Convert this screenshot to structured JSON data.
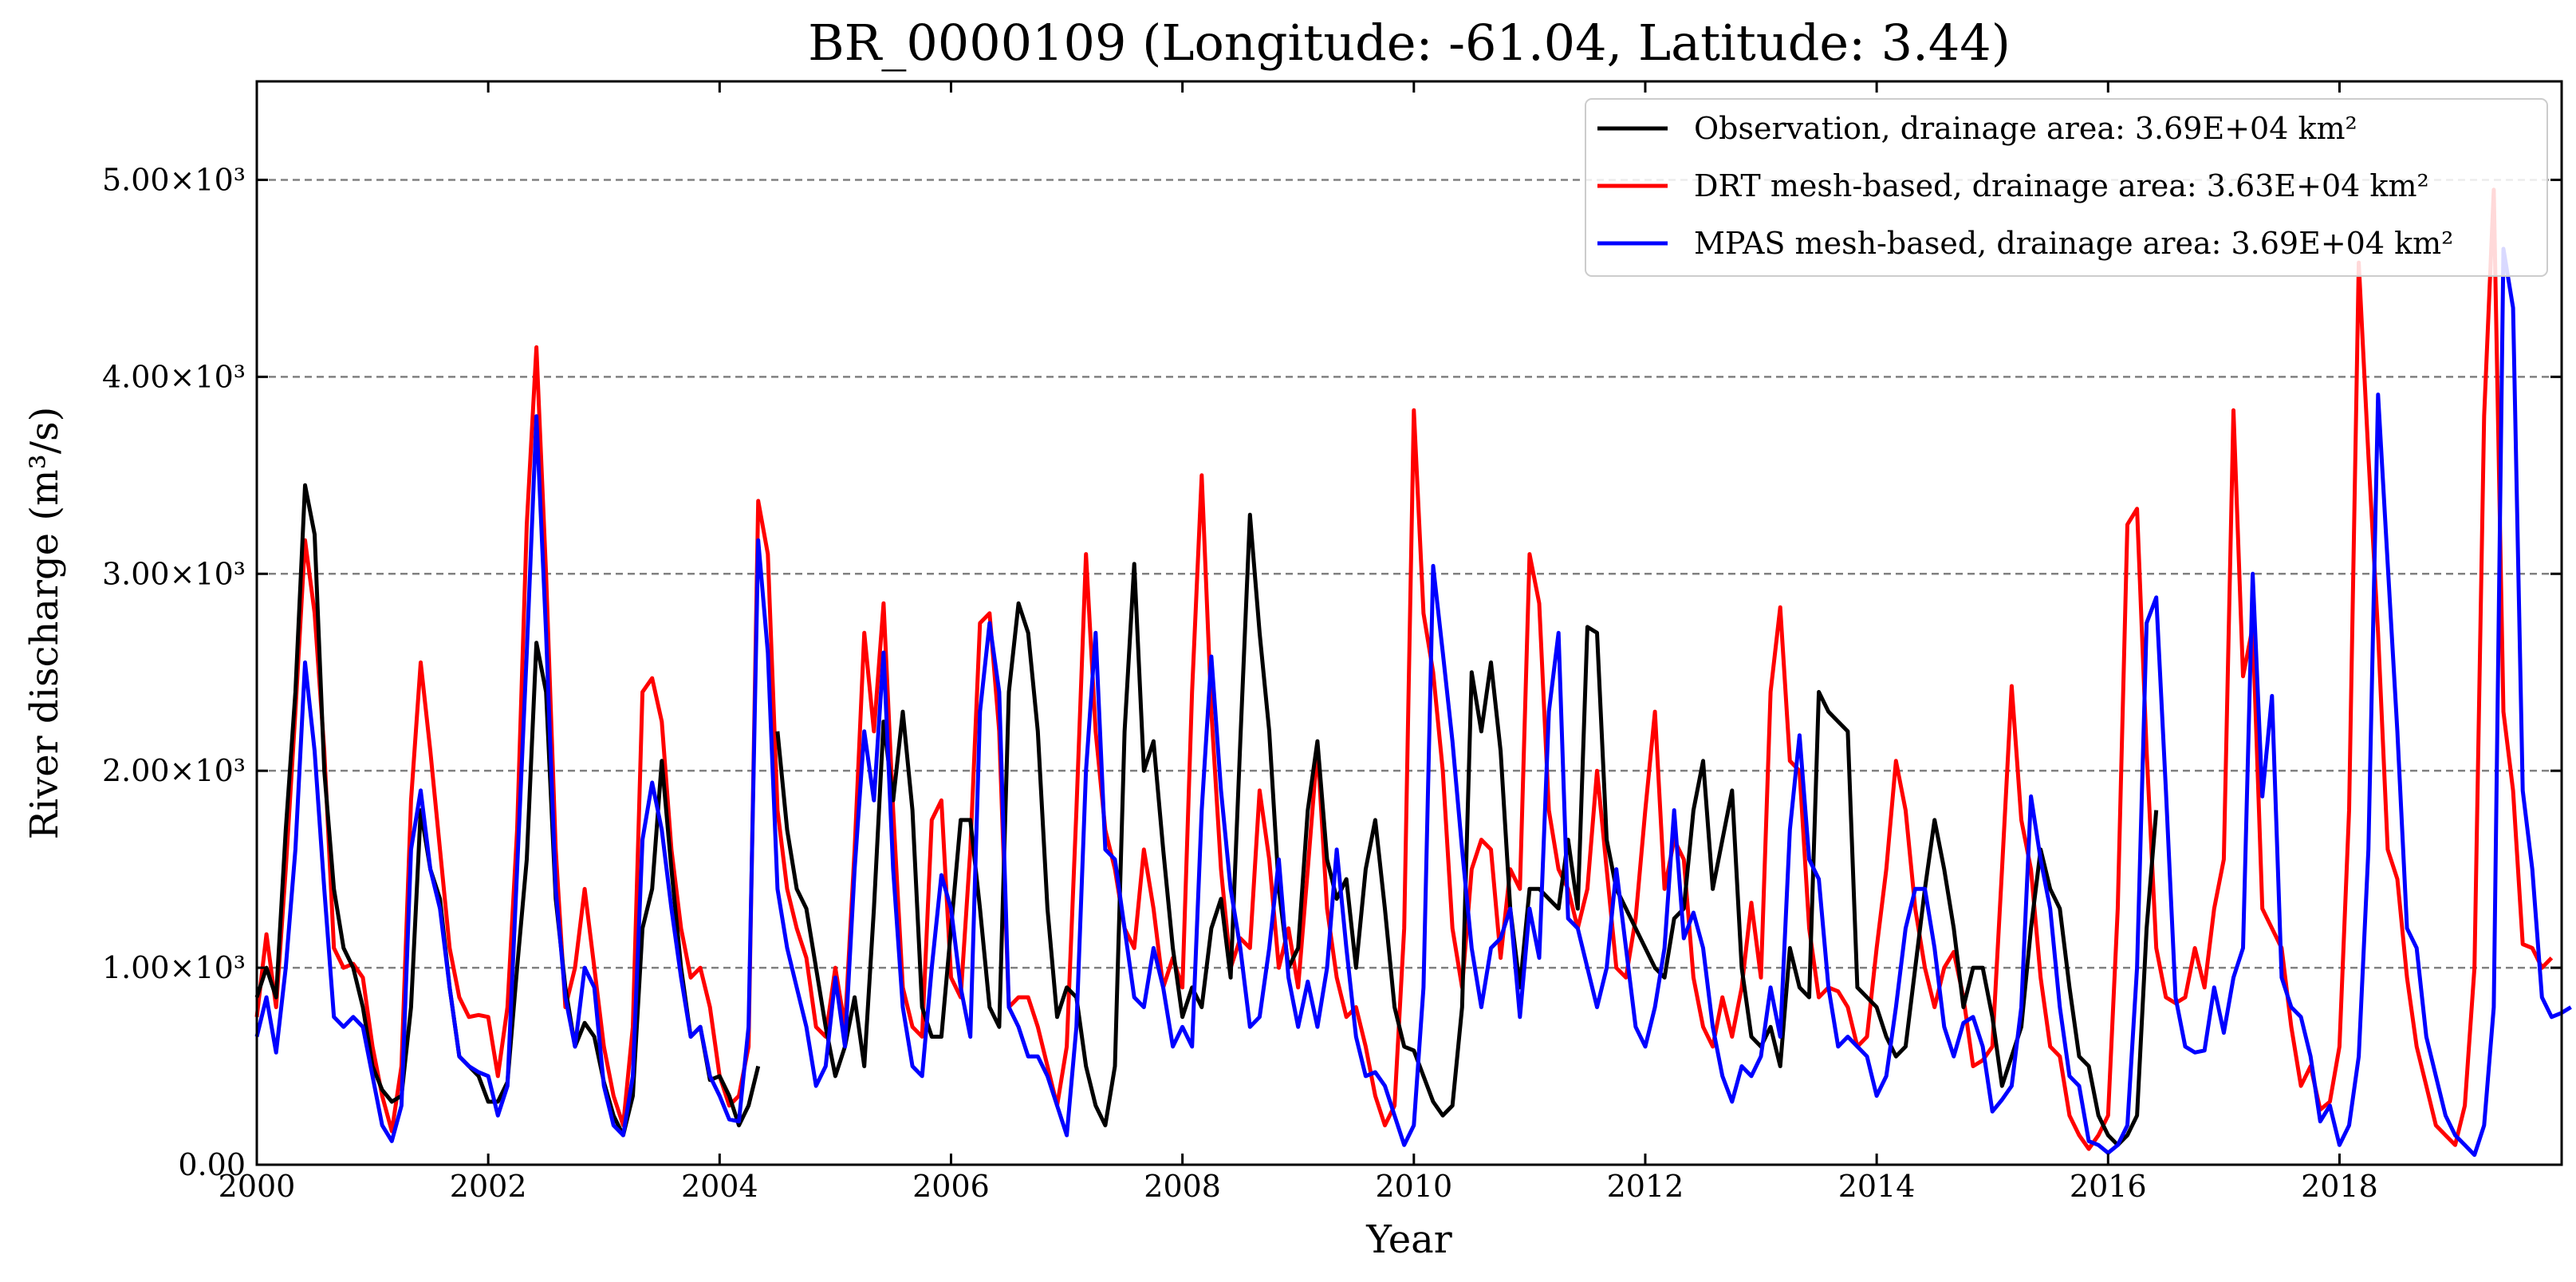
{
  "chart_data": {
    "type": "line",
    "title": "BR_0000109 (Longitude: -61.04, Latitude: 3.44)",
    "xlabel": "Year",
    "ylabel": "River discharge (m³/s)",
    "xlim": [
      2000.0,
      2019.92
    ],
    "ylim": [
      0,
      5500
    ],
    "x_ticks": [
      2000,
      2002,
      2004,
      2006,
      2008,
      2010,
      2012,
      2014,
      2016,
      2018
    ],
    "x_tick_labels": [
      "2000",
      "2002",
      "2004",
      "2006",
      "2008",
      "2010",
      "2012",
      "2014",
      "2016",
      "2018"
    ],
    "y_ticks": [
      0,
      1000,
      2000,
      3000,
      4000,
      5000
    ],
    "y_tick_labels": [
      "0.00",
      "1.00×10³",
      "2.00×10³",
      "3.00×10³",
      "4.00×10³",
      "5.00×10³"
    ],
    "grid": "horizontal dashed",
    "legend_position": "top-right",
    "x_start_year": 2000,
    "x_step": "monthly",
    "series": [
      {
        "name": "Observation, drainage area: 3.69E+04 km²",
        "color": "#000000",
        "values": [
          850,
          1000,
          850,
          1700,
          2400,
          3450,
          3200,
          2000,
          1400,
          1100,
          1000,
          800,
          500,
          380,
          320,
          350,
          800,
          1800,
          1500,
          1350,
          900,
          550,
          500,
          450,
          320,
          320,
          420,
          1000,
          1550,
          2650,
          2400,
          1350,
          900,
          600,
          720,
          650,
          420,
          250,
          150,
          350,
          1200,
          1400,
          2050,
          1500,
          1000,
          650,
          700,
          430,
          450,
          350,
          200,
          300,
          500,
          null,
          2200,
          1700,
          1400,
          1300,
          1000,
          700,
          450,
          600,
          850,
          500,
          1300,
          2250,
          1850,
          2300,
          1800,
          800,
          650,
          650,
          1200,
          1750,
          1750,
          1300,
          800,
          700,
          2400,
          2850,
          2700,
          2200,
          1300,
          750,
          900,
          850,
          500,
          300,
          200,
          500,
          2200,
          3050,
          2000,
          2150,
          1600,
          1100,
          750,
          900,
          800,
          1200,
          1350,
          950,
          2150,
          3300,
          2700,
          2200,
          1400,
          1000,
          1100,
          1800,
          2150,
          1550,
          1350,
          1450,
          1000,
          1500,
          1750,
          1300,
          800,
          600,
          580,
          450,
          320,
          250,
          300,
          800,
          2500,
          2200,
          2550,
          2100,
          1300,
          900,
          1400,
          1400,
          1350,
          1300,
          1650,
          1300,
          2730,
          2700,
          1650,
          1400,
          1300,
          1200,
          1100,
          1000,
          950,
          1250,
          1300,
          1800,
          2050,
          1400,
          1650,
          1900,
          1000,
          650,
          600,
          700,
          500,
          1100,
          900,
          850,
          2400,
          2300,
          2250,
          2200,
          900,
          850,
          800,
          650,
          550,
          600,
          1000,
          1400,
          1750,
          1500,
          1200,
          800,
          1000,
          1000,
          750,
          400,
          550,
          700,
          1200,
          1600,
          1400,
          1300,
          900,
          550,
          500,
          250,
          150,
          100,
          150,
          250,
          1200,
          1800
        ]
      },
      {
        "name": "DRT mesh-based, drainage area: 3.63E+04 km²",
        "color": "#ff0000",
        "values": [
          750,
          1170,
          800,
          1500,
          2300,
          3170,
          2800,
          2100,
          1100,
          1000,
          1020,
          950,
          600,
          350,
          170,
          500,
          1850,
          2550,
          2100,
          1600,
          1100,
          850,
          750,
          760,
          750,
          450,
          800,
          1700,
          3250,
          4150,
          3000,
          1600,
          800,
          1000,
          1400,
          1000,
          600,
          350,
          200,
          700,
          2400,
          2470,
          2250,
          1600,
          1200,
          950,
          1000,
          800,
          450,
          300,
          350,
          600,
          3370,
          3100,
          1800,
          1400,
          1200,
          1050,
          700,
          650,
          1000,
          700,
          1600,
          2700,
          2200,
          2850,
          1800,
          900,
          700,
          650,
          1750,
          1850,
          950,
          850,
          1600,
          2750,
          2800,
          2200,
          800,
          850,
          850,
          700,
          500,
          300,
          600,
          1800,
          3100,
          2200,
          1700,
          1500,
          1200,
          1100,
          1600,
          1300,
          900,
          1050,
          900,
          2400,
          3500,
          2300,
          1500,
          1000,
          1150,
          1100,
          1900,
          1550,
          1000,
          1200,
          900,
          1500,
          2120,
          1300,
          950,
          750,
          800,
          600,
          350,
          200,
          300,
          1200,
          3830,
          2800,
          2500,
          2000,
          1200,
          900,
          1500,
          1650,
          1600,
          1050,
          1500,
          1400,
          3100,
          2850,
          1800,
          1500,
          1400,
          1200,
          1400,
          2000,
          1500,
          1000,
          950,
          1250,
          1800,
          2300,
          1400,
          1650,
          1550,
          950,
          700,
          600,
          850,
          650,
          900,
          1330,
          950,
          2400,
          2830,
          2050,
          2000,
          1200,
          850,
          900,
          880,
          800,
          600,
          650,
          1100,
          1500,
          2050,
          1800,
          1300,
          1000,
          800,
          1000,
          1080,
          850,
          500,
          530,
          600,
          1500,
          2430,
          1750,
          1500,
          950,
          600,
          550,
          250,
          150,
          80,
          150,
          250,
          1300,
          3250,
          3330,
          2100,
          1100,
          850,
          820,
          850,
          1100,
          900,
          1300,
          1550,
          3830,
          2480,
          2730,
          1300,
          1200,
          1100,
          700,
          400,
          500,
          280,
          320,
          600,
          1800,
          4580,
          3600,
          2700,
          1600,
          1450,
          950,
          600,
          400,
          200,
          150,
          100,
          300,
          1000,
          3800,
          4950,
          2300,
          1900,
          1120,
          1100,
          1000,
          1050
        ]
      },
      {
        "name": "MPAS mesh-based, drainage area: 3.69E+04 km²",
        "color": "#0000ff",
        "values": [
          650,
          850,
          570,
          1000,
          1600,
          2550,
          2100,
          1400,
          750,
          700,
          750,
          700,
          450,
          200,
          120,
          300,
          1600,
          1900,
          1500,
          1300,
          900,
          550,
          500,
          470,
          450,
          250,
          400,
          1500,
          2600,
          3800,
          2700,
          1400,
          850,
          600,
          1000,
          900,
          400,
          200,
          150,
          450,
          1650,
          1940,
          1700,
          1300,
          950,
          650,
          700,
          450,
          350,
          230,
          220,
          700,
          3170,
          2600,
          1400,
          1100,
          900,
          700,
          400,
          500,
          950,
          600,
          1500,
          2200,
          1850,
          2600,
          1500,
          800,
          500,
          450,
          1000,
          1470,
          1300,
          900,
          650,
          2300,
          2750,
          2400,
          800,
          700,
          550,
          550,
          450,
          300,
          150,
          700,
          2000,
          2700,
          1600,
          1550,
          1200,
          850,
          800,
          1100,
          900,
          600,
          700,
          600,
          1800,
          2580,
          1900,
          1400,
          1100,
          700,
          750,
          1100,
          1550,
          950,
          700,
          930,
          700,
          1000,
          1600,
          1100,
          650,
          450,
          470,
          400,
          250,
          100,
          200,
          900,
          3040,
          2600,
          2150,
          1600,
          1100,
          800,
          1100,
          1150,
          1300,
          750,
          1300,
          1050,
          2300,
          2700,
          1250,
          1200,
          1000,
          800,
          1000,
          1500,
          1100,
          700,
          600,
          800,
          1100,
          1800,
          1150,
          1280,
          1100,
          700,
          450,
          320,
          500,
          450,
          550,
          900,
          650,
          1700,
          2180,
          1550,
          1450,
          900,
          600,
          650,
          600,
          550,
          350,
          450,
          800,
          1200,
          1400,
          1400,
          1100,
          700,
          550,
          720,
          750,
          600,
          270,
          330,
          400,
          800,
          1870,
          1550,
          1300,
          800,
          450,
          400,
          120,
          100,
          60,
          100,
          200,
          1000,
          2750,
          2880,
          1900,
          850,
          600,
          570,
          580,
          900,
          670,
          950,
          1100,
          3000,
          1870,
          2380,
          950,
          800,
          750,
          550,
          220,
          300,
          100,
          200,
          550,
          1600,
          3910,
          3050,
          2200,
          1200,
          1100,
          650,
          450,
          250,
          150,
          100,
          50,
          200,
          800,
          4650,
          4350,
          1900,
          1500,
          850,
          750,
          770,
          800
        ]
      }
    ]
  }
}
